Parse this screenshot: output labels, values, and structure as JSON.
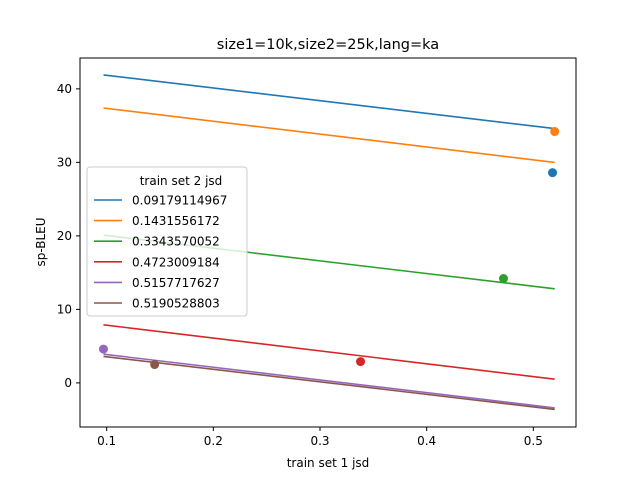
{
  "chart_data": {
    "type": "line",
    "title": "size1=10k,size2=25k,lang=ka",
    "xlabel": "train set 1 jsd",
    "ylabel": "sp-BLEU",
    "xlim": [
      0.075,
      0.54
    ],
    "ylim": [
      -6.0,
      44.2
    ],
    "xticks": [
      0.1,
      0.2,
      0.3,
      0.4,
      0.5
    ],
    "xtick_labels": [
      "0.1",
      "0.2",
      "0.3",
      "0.4",
      "0.5"
    ],
    "yticks": [
      0,
      10,
      20,
      30,
      40
    ],
    "ytick_labels": [
      "0",
      "10",
      "20",
      "30",
      "40"
    ],
    "grid": false,
    "legend": {
      "title": "train set 2 jsd",
      "placement": "center-left"
    },
    "series": [
      {
        "name": "0.09179114967",
        "color": "#1f77b4",
        "line": [
          [
            0.097,
            41.9
          ],
          [
            0.52,
            34.6
          ]
        ],
        "point": [
          0.518,
          28.6
        ]
      },
      {
        "name": "0.1431556172",
        "color": "#ff7f0e",
        "line": [
          [
            0.097,
            37.4
          ],
          [
            0.52,
            30.0
          ]
        ],
        "point": [
          0.52,
          34.2
        ]
      },
      {
        "name": "0.3343570052",
        "color": "#2ca02c",
        "line": [
          [
            0.097,
            20.1
          ],
          [
            0.52,
            12.8
          ]
        ],
        "point": [
          0.472,
          14.2
        ]
      },
      {
        "name": "0.4723009184",
        "color": "#d62728",
        "line": [
          [
            0.097,
            7.9
          ],
          [
            0.52,
            0.5
          ]
        ],
        "point": [
          0.338,
          2.9
        ]
      },
      {
        "name": "0.5157717627",
        "color": "#9467bd",
        "line": [
          [
            0.097,
            3.9
          ],
          [
            0.52,
            -3.4
          ]
        ],
        "point": [
          0.097,
          4.6
        ]
      },
      {
        "name": "0.5190528803",
        "color": "#8c564b",
        "line": [
          [
            0.097,
            3.6
          ],
          [
            0.52,
            -3.6
          ]
        ],
        "point": [
          0.145,
          2.5
        ]
      }
    ]
  }
}
